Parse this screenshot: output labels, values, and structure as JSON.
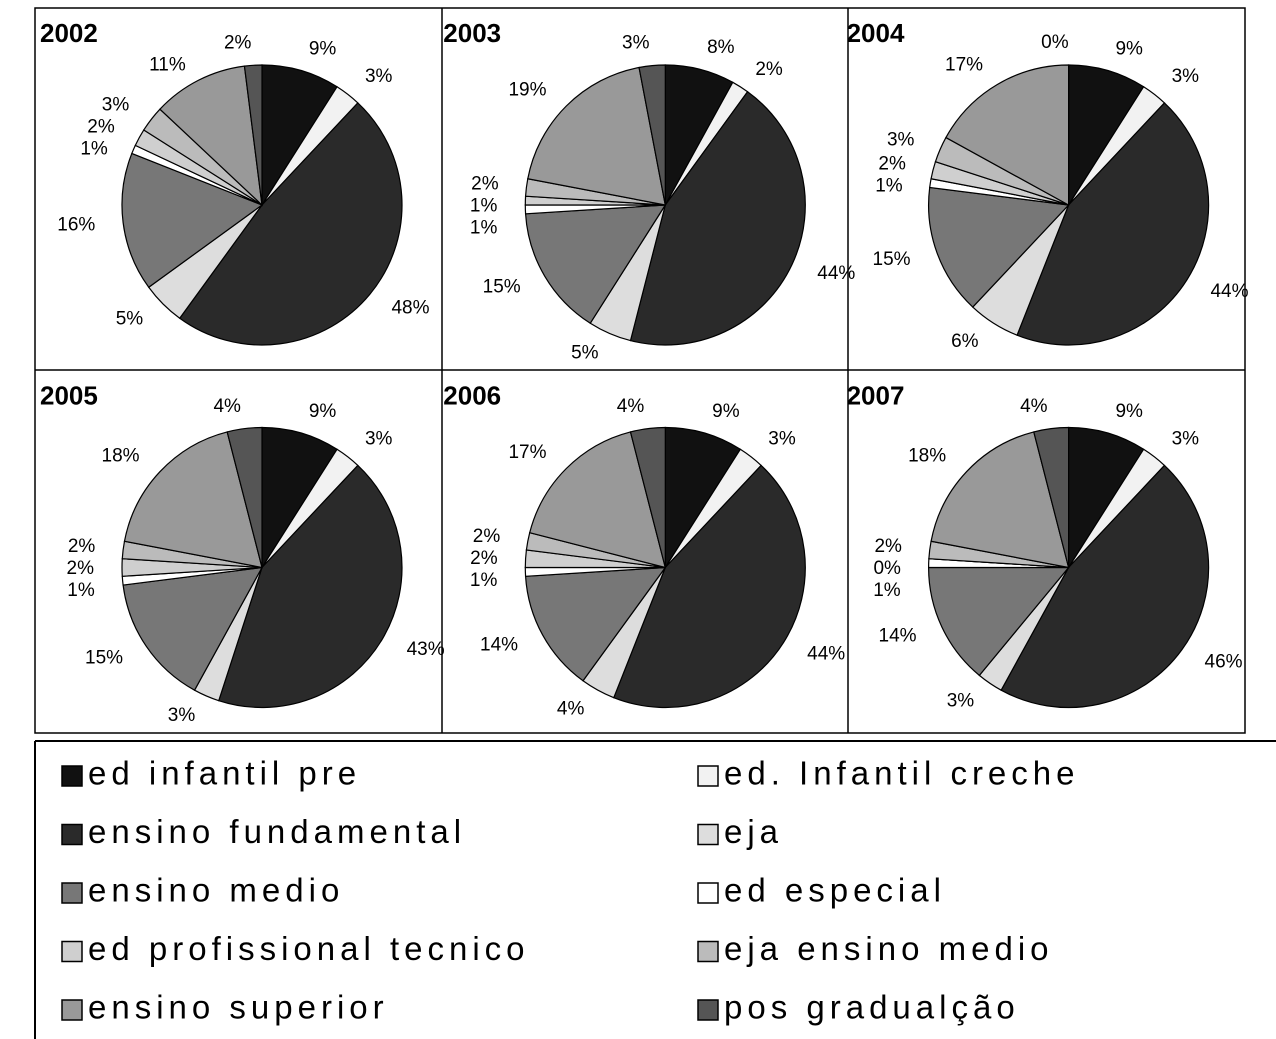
{
  "legend": {
    "labels": [
      "ed infantil pre",
      "ed. Infantil creche",
      "ensino fundamental",
      "eja",
      "ensino medio",
      "ed especial",
      "ed profissional tecnico",
      "eja ensino medio",
      "ensino superior",
      "pos gradualção"
    ],
    "colors": [
      "#111111",
      "#f2f2f2",
      "#2a2a2a",
      "#dddddd",
      "#777777",
      "#ffffff",
      "#cfcfcf",
      "#bbbbbb",
      "#999999",
      "#555555"
    ]
  },
  "chart_data": [
    {
      "type": "pie",
      "title": "2002",
      "values": [
        9,
        3,
        48,
        5,
        16,
        1,
        2,
        3,
        11,
        2
      ]
    },
    {
      "type": "pie",
      "title": "2003",
      "values": [
        8,
        2,
        44,
        5,
        15,
        1,
        1,
        2,
        19,
        3
      ]
    },
    {
      "type": "pie",
      "title": "2004",
      "values": [
        9,
        3,
        44,
        6,
        15,
        1,
        2,
        3,
        17,
        0
      ]
    },
    {
      "type": "pie",
      "title": "2005",
      "values": [
        9,
        3,
        43,
        3,
        15,
        1,
        2,
        2,
        18,
        4
      ]
    },
    {
      "type": "pie",
      "title": "2006",
      "values": [
        9,
        3,
        44,
        4,
        14,
        1,
        2,
        2,
        17,
        4
      ]
    },
    {
      "type": "pie",
      "title": "2007",
      "values": [
        9,
        3,
        46,
        3,
        14,
        1,
        0,
        2,
        18,
        4
      ]
    }
  ]
}
